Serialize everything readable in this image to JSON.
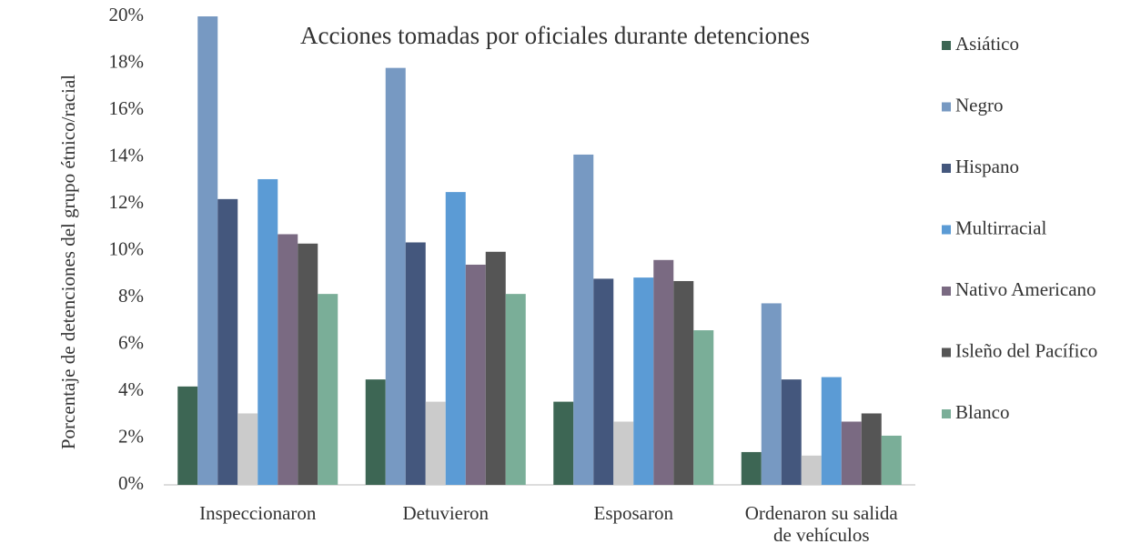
{
  "chart_data": {
    "type": "bar",
    "title": "Acciones tomadas por oficiales durante detenciones",
    "ylabel": "Porcentaje de detenciones del grupo étnico/racial",
    "categories": [
      "Inspeccionaron",
      "Detuvieron",
      "Esposaron",
      "Ordenaron su salida de vehículos"
    ],
    "series": [
      {
        "name": "Asiático",
        "color": "#3d6654",
        "values": [
          4.2,
          4.5,
          3.55,
          1.4
        ]
      },
      {
        "name": "Negro",
        "color": "#7799c2",
        "values": [
          20,
          17.8,
          14.1,
          7.75
        ]
      },
      {
        "name": "Hispano",
        "color": "#44577d",
        "values": [
          12.2,
          10.35,
          8.8,
          4.5
        ]
      },
      {
        "name": null,
        "color": "#cbcbcb",
        "values": [
          3.05,
          3.55,
          2.7,
          1.25
        ]
      },
      {
        "name": "Multirracial",
        "color": "#5b9bd5",
        "values": [
          13.05,
          12.5,
          8.85,
          4.6
        ]
      },
      {
        "name": "Nativo Americano",
        "color": "#7a6a82",
        "values": [
          10.7,
          9.4,
          9.6,
          2.7
        ]
      },
      {
        "name": "Isleño del Pacífico",
        "color": "#555555",
        "values": [
          10.3,
          9.95,
          8.7,
          3.05
        ]
      },
      {
        "name": "Blanco",
        "color": "#7aae98",
        "values": [
          8.15,
          8.15,
          6.6,
          2.1
        ]
      }
    ],
    "ylim": [
      0,
      20
    ],
    "yticks": [
      {
        "value": 0,
        "label": "0%"
      },
      {
        "value": 2,
        "label": "2%"
      },
      {
        "value": 4,
        "label": "4%"
      },
      {
        "value": 6,
        "label": "6%"
      },
      {
        "value": 8,
        "label": "8%"
      },
      {
        "value": 10,
        "label": "10%"
      },
      {
        "value": 12,
        "label": "12%"
      },
      {
        "value": 14,
        "label": "14%"
      },
      {
        "value": 16,
        "label": "16%"
      },
      {
        "value": 18,
        "label": "18%"
      },
      {
        "value": 20,
        "label": "20%"
      }
    ],
    "grid": false,
    "legend": "right"
  }
}
